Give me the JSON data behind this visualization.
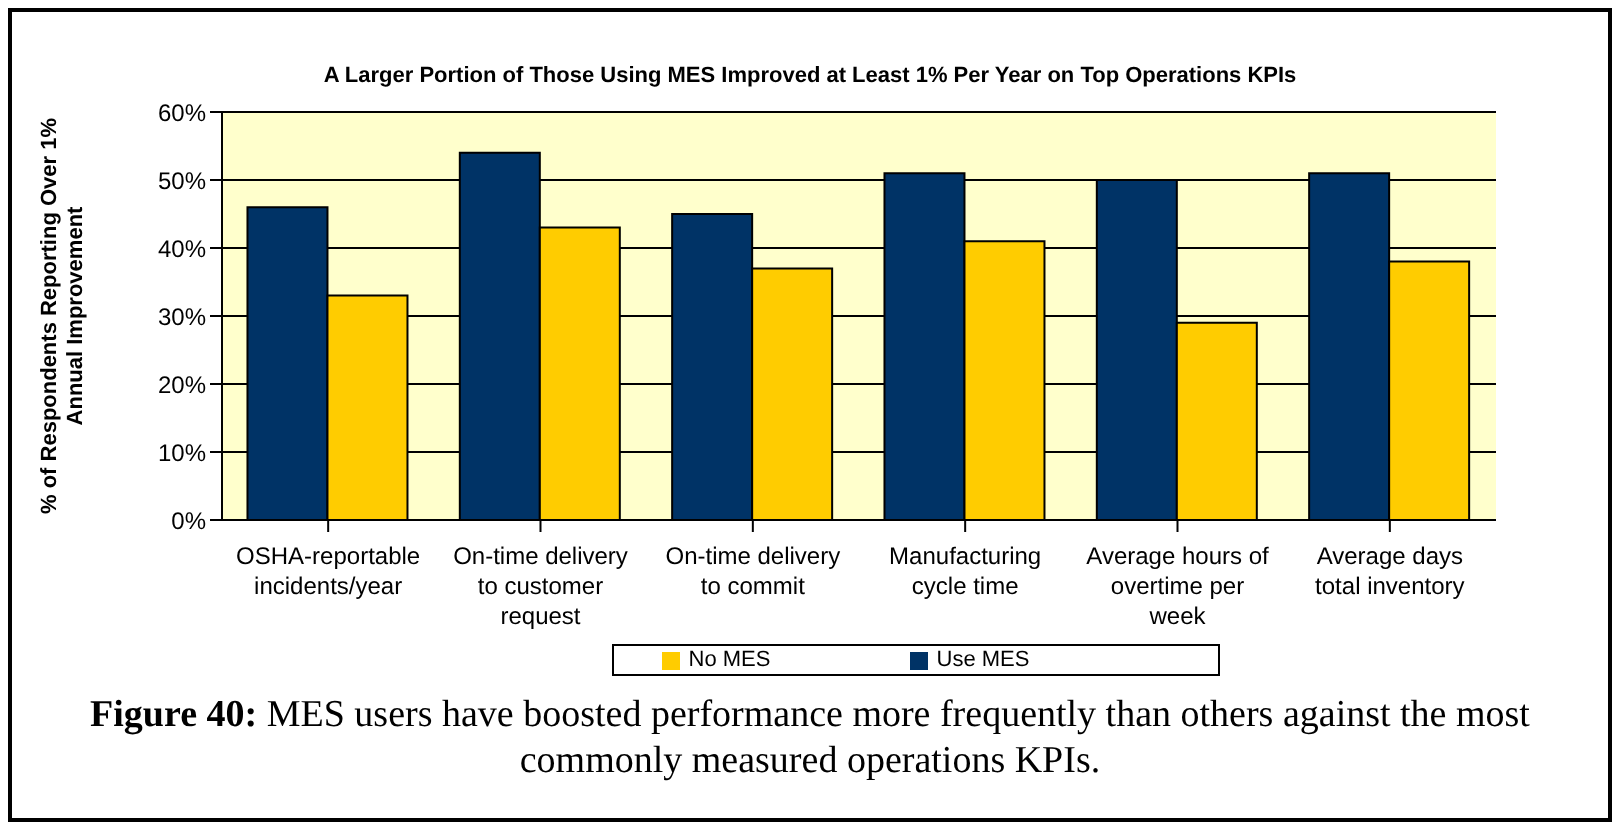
{
  "chart_data": {
    "type": "bar",
    "title": "A Larger Portion of Those Using MES Improved at Least 1% Per Year on Top Operations KPIs",
    "ylabel": "% of Respondents Reporting Over 1% Annual Improvement",
    "categories": [
      "OSHA-reportable incidents/year",
      "On-time delivery to customer request",
      "On-time delivery to commit",
      "Manufacturing cycle time",
      "Average hours of overtime per week",
      "Average days total inventory"
    ],
    "series": [
      {
        "name": "Use MES",
        "color": "#003366",
        "values": [
          46,
          54,
          45,
          51,
          50,
          51
        ]
      },
      {
        "name": "No MES",
        "color": "#ffcc00",
        "values": [
          33,
          43,
          37,
          41,
          29,
          38
        ]
      }
    ],
    "ylim": [
      0,
      60
    ],
    "yticks": [
      {
        "value": 0,
        "label": "0%"
      },
      {
        "value": 10,
        "label": "10%"
      },
      {
        "value": 20,
        "label": "20%"
      },
      {
        "value": 30,
        "label": "30%"
      },
      {
        "value": 40,
        "label": "40%"
      },
      {
        "value": 50,
        "label": "50%"
      },
      {
        "value": 60,
        "label": "60%"
      }
    ],
    "grid": "y",
    "legend": "bottom",
    "annotations": [
      "Figure 40: MES users have boosted performance more frequently than others against the most commonly measured operations KPIs."
    ]
  }
}
